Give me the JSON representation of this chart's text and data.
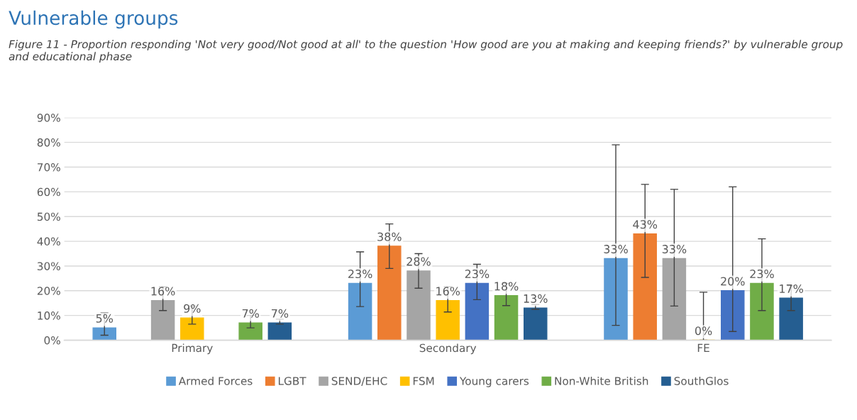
{
  "chart_data": {
    "type": "bar",
    "title": "Vulnerable groups",
    "subtitle": "Figure 11 - Proportion responding 'Not very good/Not good at all' to the question 'How good are you at making and keeping friends?' by vulnerable group and educational phase",
    "categories": [
      "Primary",
      "Secondary",
      "FE"
    ],
    "series": [
      {
        "name": "Armed Forces",
        "color": "#5b9bd5",
        "values": [
          5,
          23,
          33
        ],
        "value_labels": [
          "5%",
          "23%",
          "33%"
        ],
        "errors": [
          [
            2,
            11
          ],
          [
            13.6,
            35.7
          ],
          [
            6,
            79
          ]
        ]
      },
      {
        "name": "LGBT",
        "color": "#ed7d31",
        "values": [
          null,
          38,
          43
        ],
        "value_labels": [
          null,
          "38%",
          "43%"
        ],
        "errors": [
          null,
          [
            29,
            47
          ],
          [
            25.4,
            63
          ]
        ]
      },
      {
        "name": "SEND/EHC",
        "color": "#a5a5a5",
        "values": [
          16,
          28,
          33
        ],
        "value_labels": [
          "16%",
          "28%",
          "33%"
        ],
        "errors": [
          [
            12,
            21.6
          ],
          [
            21,
            35
          ],
          [
            13.8,
            61
          ]
        ]
      },
      {
        "name": "FSM",
        "color": "#ffc000",
        "values": [
          9,
          16,
          0
        ],
        "value_labels": [
          "9%",
          "16%",
          "0%"
        ],
        "errors": [
          [
            6.5,
            13.8
          ],
          [
            11.4,
            21.6
          ],
          [
            0,
            19.4
          ]
        ]
      },
      {
        "name": "Young carers",
        "color": "#4472c4",
        "values": [
          null,
          23,
          20
        ],
        "value_labels": [
          null,
          "23%",
          "20%"
        ],
        "errors": [
          null,
          [
            16.4,
            30.7
          ],
          [
            3.5,
            62
          ]
        ]
      },
      {
        "name": "Non-White British",
        "color": "#70ad47",
        "values": [
          7,
          18,
          23
        ],
        "value_labels": [
          "7%",
          "18%",
          "23%"
        ],
        "errors": [
          [
            5,
            10
          ],
          [
            14,
            23
          ],
          [
            12,
            41
          ]
        ]
      },
      {
        "name": "SouthGlos",
        "color": "#255e91",
        "values": [
          7,
          13,
          17
        ],
        "value_labels": [
          "7%",
          "13%",
          "17%"
        ],
        "errors": [
          [
            6.5,
            8.5
          ],
          [
            12.5,
            14.4
          ],
          [
            12,
            22
          ]
        ]
      }
    ],
    "ylim": [
      0,
      90
    ],
    "yticks": [
      {
        "value": 0,
        "label": "0%"
      },
      {
        "value": 10,
        "label": "10%"
      },
      {
        "value": 20,
        "label": "20%"
      },
      {
        "value": 30,
        "label": "30%"
      },
      {
        "value": 40,
        "label": "40%"
      },
      {
        "value": 50,
        "label": "50%"
      },
      {
        "value": 60,
        "label": "60%"
      },
      {
        "value": 70,
        "label": "70%"
      },
      {
        "value": 80,
        "label": "80%"
      },
      {
        "value": 90,
        "label": "90%"
      }
    ],
    "grid": "y",
    "legend": "bottom"
  }
}
